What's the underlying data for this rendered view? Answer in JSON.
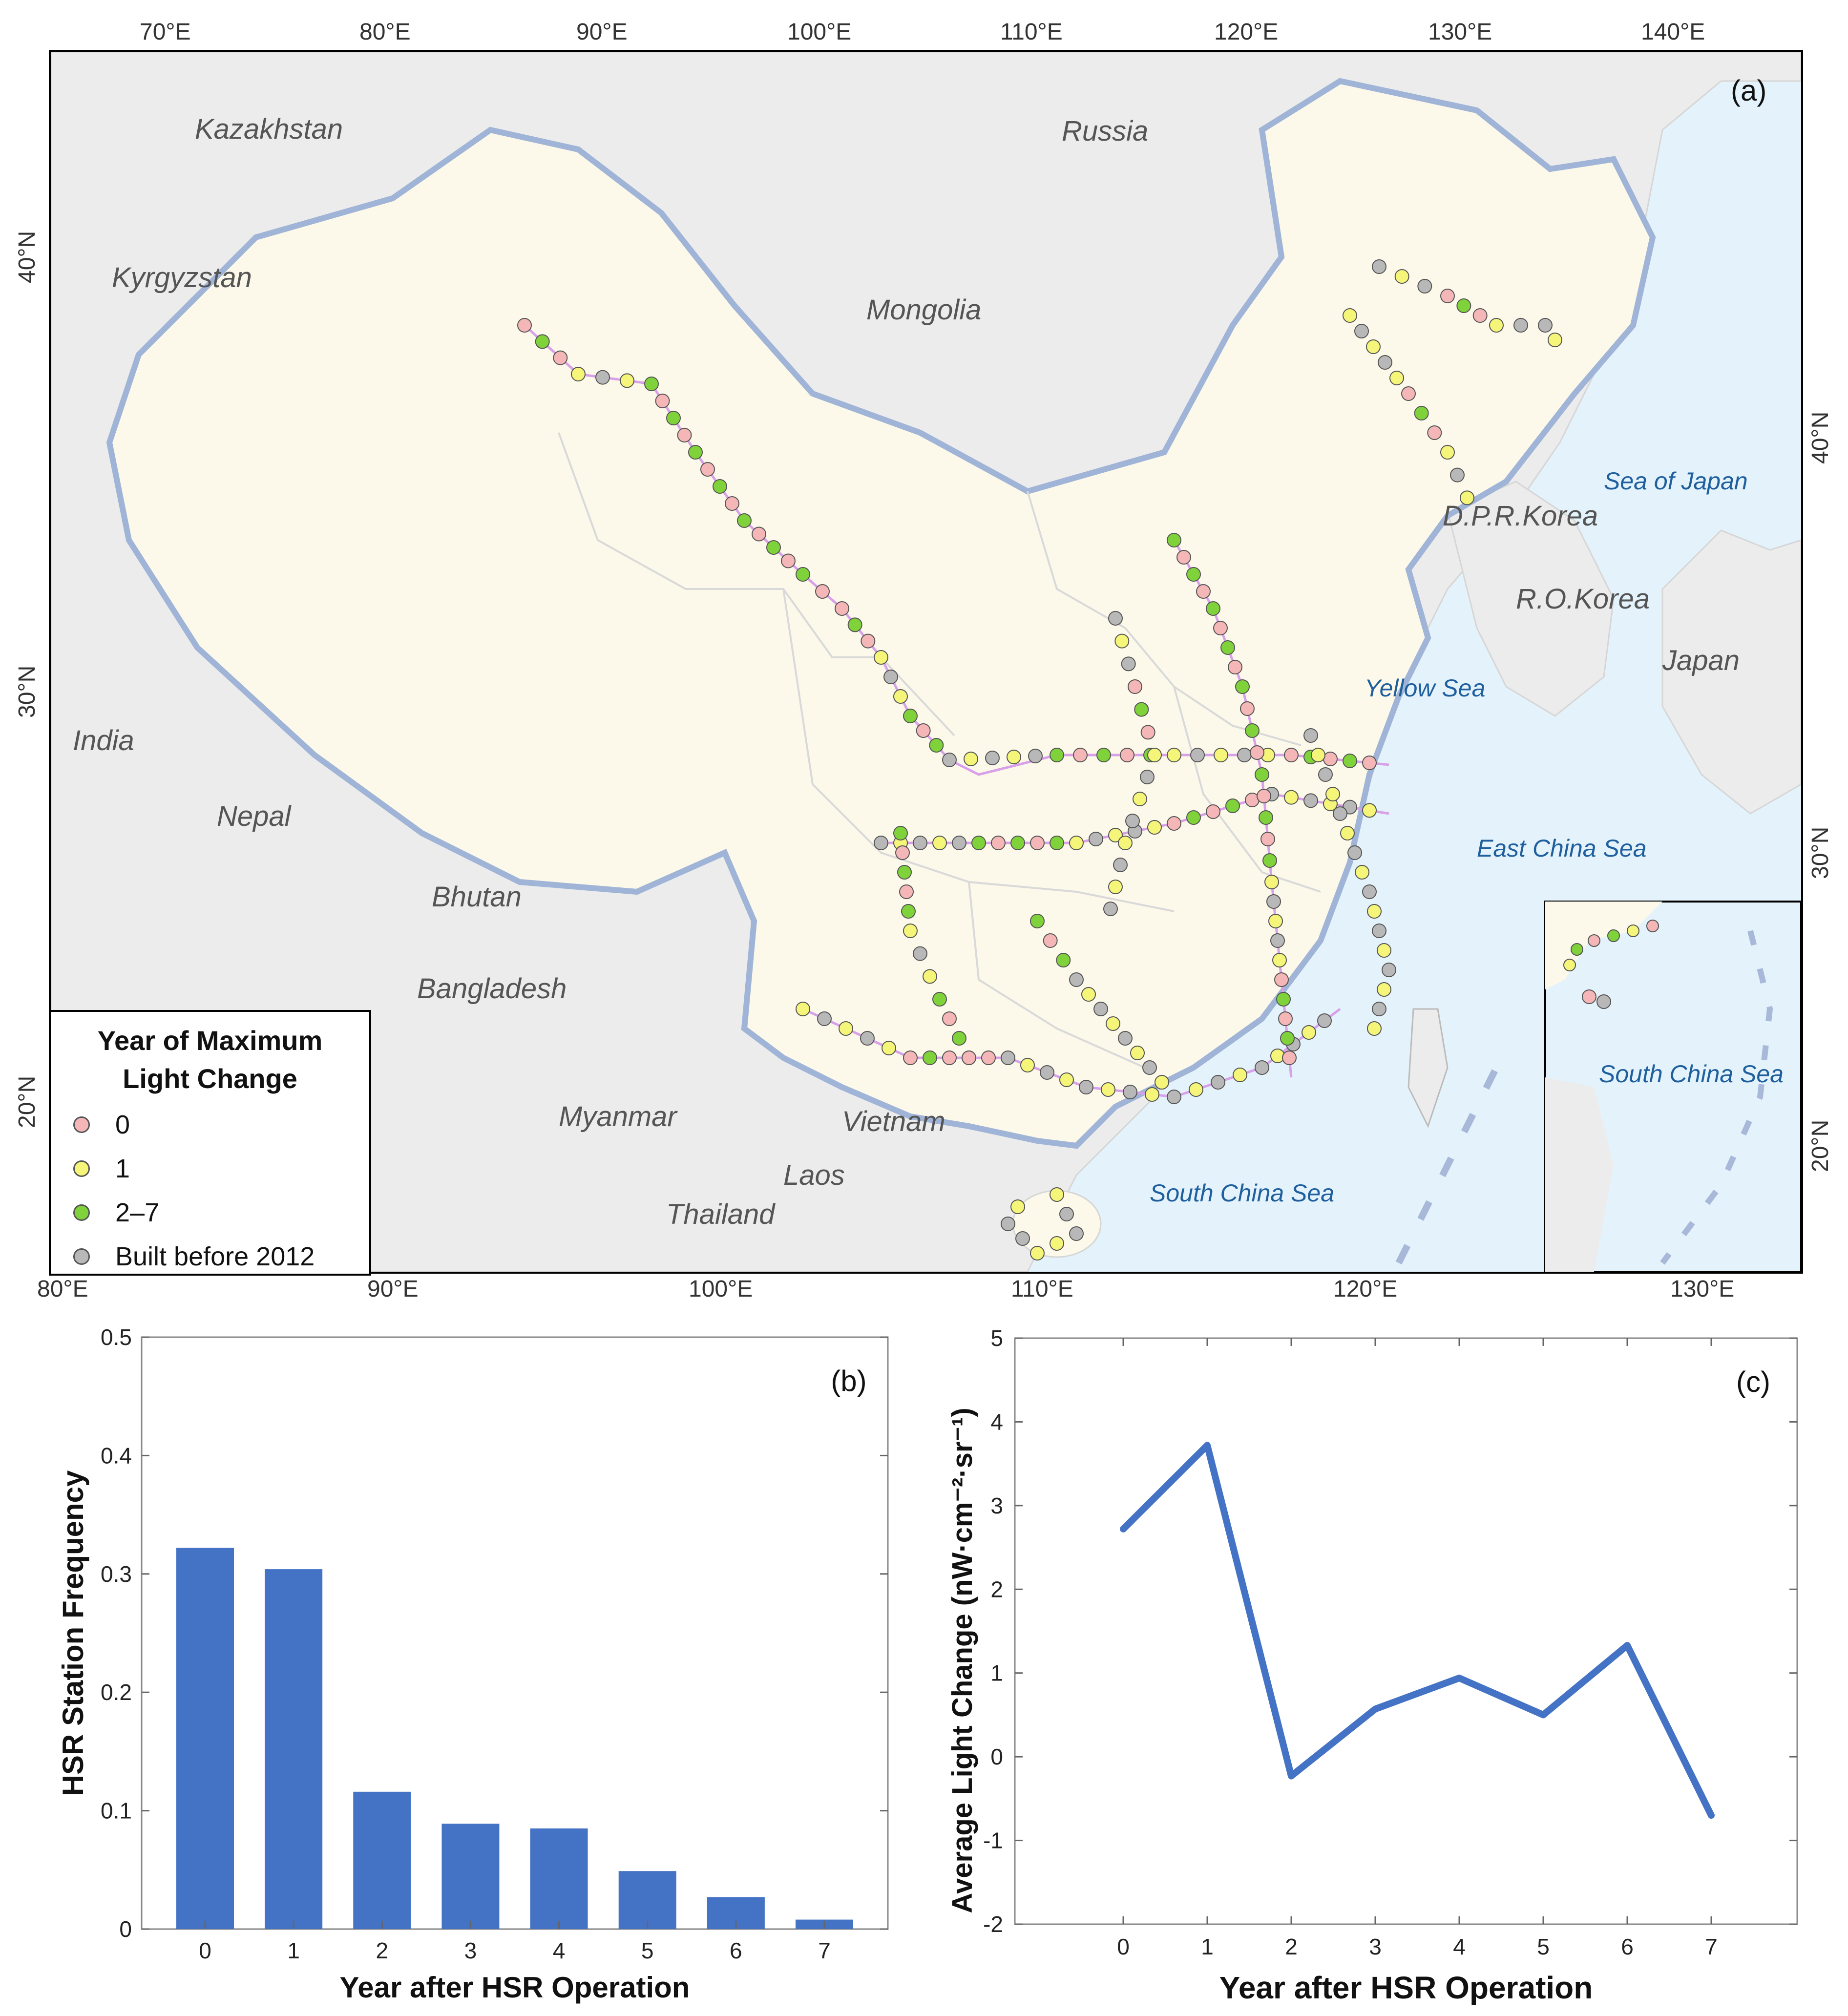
{
  "map": {
    "panel_label": "(a)",
    "top_ticks": [
      "70°E",
      "80°E",
      "90°E",
      "100°E",
      "110°E",
      "120°E",
      "130°E",
      "140°E"
    ],
    "bottom_ticks": [
      "80°E",
      "90°E",
      "100°E",
      "110°E",
      "120°E"
    ],
    "left_ticks": [
      "40°N",
      "30°N",
      "20°N"
    ],
    "right_ticks": [
      "40°N",
      "30°N"
    ],
    "inset_ticks_bottom": [
      "130°E"
    ],
    "inset_ticks_right": [
      "20°N"
    ],
    "countries": [
      "Kazakhstan",
      "Russia",
      "Kyrgyzstan",
      "Mongolia",
      "India",
      "Nepal",
      "Bhutan",
      "Bangladesh",
      "Myanmar",
      "Vietnam",
      "Laos",
      "Thailand",
      "D.P.R.Korea",
      "R.O.Korea",
      "Japan"
    ],
    "seas": [
      "Sea of Japan",
      "Yellow Sea",
      "East China Sea",
      "South China Sea",
      "South China Sea",
      "South China Sea"
    ],
    "legend": {
      "title_line1": "Year of Maximum",
      "title_line2": "Light Change",
      "items": [
        {
          "label": "0",
          "color": "#f4b6b6"
        },
        {
          "label": "1",
          "color": "#f5f57a"
        },
        {
          "label": "2–7",
          "color": "#7fd23a"
        },
        {
          "label": "Built before 2012",
          "color": "#b8b8b8"
        }
      ]
    }
  },
  "chart_data": [
    {
      "type": "bar",
      "panel_label": "(b)",
      "categories": [
        "0",
        "1",
        "2",
        "3",
        "4",
        "5",
        "6",
        "7"
      ],
      "values": [
        0.322,
        0.304,
        0.116,
        0.089,
        0.085,
        0.049,
        0.027,
        0.008
      ],
      "xlabel": "Year after HSR Operation",
      "ylabel": "HSR Station Frequency",
      "ylim": [
        0,
        0.5
      ],
      "yticks": [
        "0",
        "0.1",
        "0.2",
        "0.3",
        "0.4",
        "0.5"
      ],
      "color": "#4472c4",
      "grid": false
    },
    {
      "type": "line",
      "panel_label": "(c)",
      "x": [
        "0",
        "1",
        "2",
        "3",
        "4",
        "5",
        "6",
        "7"
      ],
      "values": [
        2.72,
        3.72,
        -0.23,
        0.57,
        0.94,
        0.5,
        1.33,
        -0.7
      ],
      "xlabel": "Year after HSR Operation",
      "ylabel": "Average Light Change (nW·cm⁻²·sr⁻¹)",
      "ylim": [
        -2,
        5
      ],
      "yticks": [
        "-2",
        "-1",
        "0",
        "1",
        "2",
        "3",
        "4",
        "5"
      ],
      "color": "#4472c4",
      "grid": false
    }
  ]
}
